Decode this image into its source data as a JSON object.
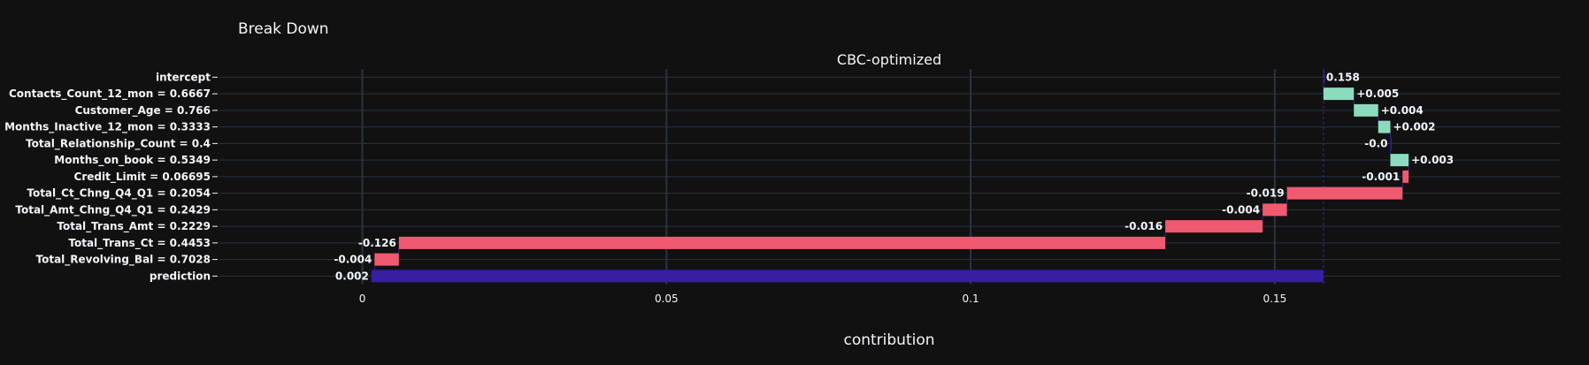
{
  "title": "Break Down",
  "colors": {
    "background": "#111111",
    "grid": "#283442",
    "positive": "#8bdcbe",
    "negative": "#f05a71",
    "prediction": "#371ea3",
    "connector": "#371ea3",
    "text": "#f2f5fa"
  },
  "chart_data": {
    "type": "waterfall",
    "subtitle": "CBC-optimized",
    "xlabel": "contribution",
    "xlim": [
      -0.0235,
      0.197
    ],
    "x_ticks": [
      0,
      0.05,
      0.1,
      0.15
    ],
    "x_tick_labels": [
      "0",
      "0.05",
      "0.1",
      "0.15"
    ],
    "grid": true,
    "orientation": "horizontal",
    "bars": [
      {
        "variable": "intercept",
        "kind": "intercept",
        "start": 0.158,
        "end": 0.158,
        "label": "0.158"
      },
      {
        "variable": "Contacts_Count_12_mon = 0.6667",
        "kind": "positive",
        "start": 0.158,
        "end": 0.163,
        "label": "+0.005"
      },
      {
        "variable": "Customer_Age = 0.766",
        "kind": "positive",
        "start": 0.163,
        "end": 0.167,
        "label": "+0.004"
      },
      {
        "variable": "Months_Inactive_12_mon = 0.3333",
        "kind": "positive",
        "start": 0.167,
        "end": 0.169,
        "label": "+0.002"
      },
      {
        "variable": "Total_Relationship_Count = 0.4",
        "kind": "zero",
        "start": 0.169,
        "end": 0.169,
        "label": "-0.0"
      },
      {
        "variable": "Months_on_book = 0.5349",
        "kind": "positive",
        "start": 0.169,
        "end": 0.172,
        "label": "+0.003"
      },
      {
        "variable": "Credit_Limit = 0.06695",
        "kind": "negative",
        "start": 0.172,
        "end": 0.171,
        "label": "-0.001"
      },
      {
        "variable": "Total_Ct_Chng_Q4_Q1 = 0.2054",
        "kind": "negative",
        "start": 0.171,
        "end": 0.152,
        "label": "-0.019"
      },
      {
        "variable": "Total_Amt_Chng_Q4_Q1 = 0.2429",
        "kind": "negative",
        "start": 0.152,
        "end": 0.148,
        "label": "-0.004"
      },
      {
        "variable": "Total_Trans_Amt = 0.2229",
        "kind": "negative",
        "start": 0.148,
        "end": 0.132,
        "label": "-0.016"
      },
      {
        "variable": "Total_Trans_Ct = 0.4453",
        "kind": "negative",
        "start": 0.132,
        "end": 0.006,
        "label": "-0.126"
      },
      {
        "variable": "Total_Revolving_Bal = 0.7028",
        "kind": "negative",
        "start": 0.006,
        "end": 0.002,
        "label": "-0.004"
      },
      {
        "variable": "prediction",
        "kind": "prediction",
        "start": 0.0015,
        "end": 0.158,
        "label": "0.002"
      }
    ],
    "reference_line": 0.158
  }
}
